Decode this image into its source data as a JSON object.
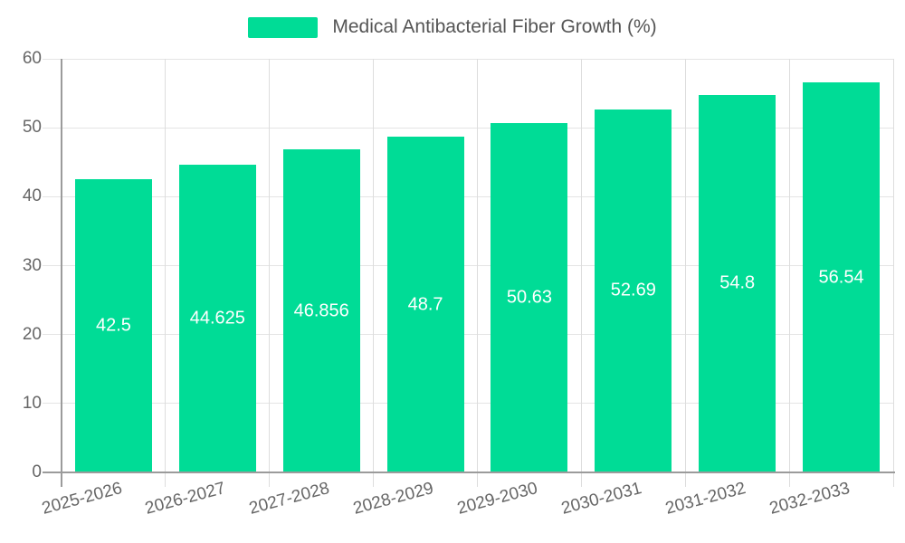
{
  "legend": {
    "series_label": "Medical Antibacterial Fiber Growth (%)"
  },
  "chart_data": {
    "type": "bar",
    "title": "Medical Antibacterial Fiber Growth (%)",
    "categories": [
      "2025-2026",
      "2026-2027",
      "2027-2028",
      "2028-2029",
      "2029-2030",
      "2030-2031",
      "2031-2032",
      "2032-2033"
    ],
    "values": [
      42.5,
      44.625,
      46.856,
      48.7,
      50.63,
      52.69,
      54.8,
      56.54
    ],
    "xlabel": "",
    "ylabel": "",
    "ylim": [
      0,
      60
    ],
    "yticks": [
      0,
      10,
      20,
      30,
      40,
      50,
      60
    ],
    "grid": true,
    "legend_position": "top-center",
    "x_label_rotation_deg": -15,
    "value_label_position": "inside-center"
  },
  "colors": {
    "bar": "#00DC96",
    "bar_value_label": "#FFFFFF",
    "axis_line": "#9B9B9B",
    "h_gridline": "#E4E4E4",
    "v_gridline": "#DDDDDD",
    "axis_label": "#666666",
    "legend_text": "#555555",
    "background": "#FFFFFF"
  }
}
